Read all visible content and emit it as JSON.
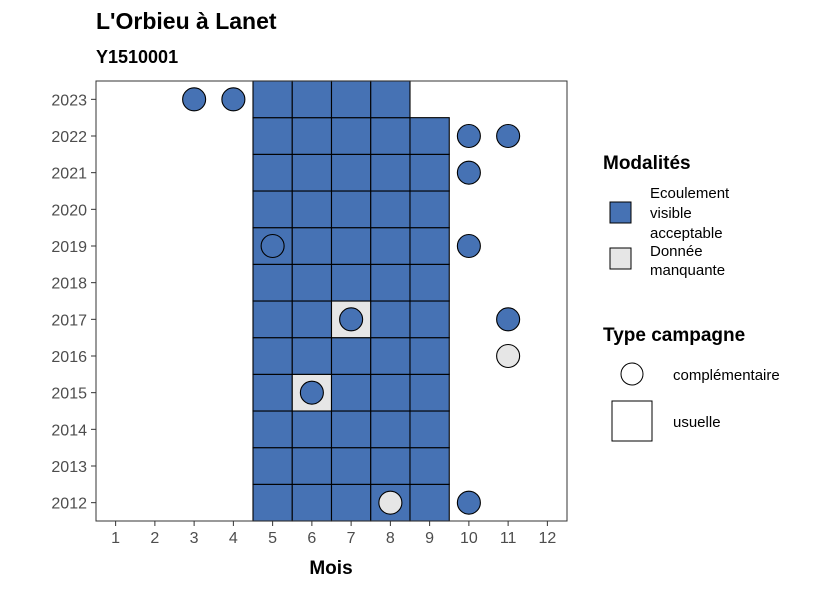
{
  "chart_data": {
    "type": "heatmap",
    "title": "L'Orbieu à Lanet",
    "subtitle": "Y1510001",
    "xlabel": "Mois",
    "ylabel": "",
    "x_ticks": [
      1,
      2,
      3,
      4,
      5,
      6,
      7,
      8,
      9,
      10,
      11,
      12
    ],
    "y_ticks": [
      2012,
      2013,
      2014,
      2015,
      2016,
      2017,
      2018,
      2019,
      2020,
      2021,
      2022,
      2023
    ],
    "xlim": [
      0.5,
      12.5
    ],
    "ylim": [
      2011.5,
      2023.5
    ],
    "colors": {
      "ecoulement": "#4672b4",
      "manquante": "#e6e6e6"
    },
    "tiles": [
      {
        "year": 2012,
        "month": 5,
        "modalite": "ecoulement"
      },
      {
        "year": 2012,
        "month": 6,
        "modalite": "ecoulement"
      },
      {
        "year": 2012,
        "month": 7,
        "modalite": "ecoulement"
      },
      {
        "year": 2012,
        "month": 8,
        "modalite": "ecoulement"
      },
      {
        "year": 2012,
        "month": 9,
        "modalite": "ecoulement"
      },
      {
        "year": 2013,
        "month": 5,
        "modalite": "ecoulement"
      },
      {
        "year": 2013,
        "month": 6,
        "modalite": "ecoulement"
      },
      {
        "year": 2013,
        "month": 7,
        "modalite": "ecoulement"
      },
      {
        "year": 2013,
        "month": 8,
        "modalite": "ecoulement"
      },
      {
        "year": 2013,
        "month": 9,
        "modalite": "ecoulement"
      },
      {
        "year": 2014,
        "month": 5,
        "modalite": "ecoulement"
      },
      {
        "year": 2014,
        "month": 6,
        "modalite": "ecoulement"
      },
      {
        "year": 2014,
        "month": 7,
        "modalite": "ecoulement"
      },
      {
        "year": 2014,
        "month": 8,
        "modalite": "ecoulement"
      },
      {
        "year": 2014,
        "month": 9,
        "modalite": "ecoulement"
      },
      {
        "year": 2015,
        "month": 5,
        "modalite": "ecoulement"
      },
      {
        "year": 2015,
        "month": 6,
        "modalite": "manquante"
      },
      {
        "year": 2015,
        "month": 7,
        "modalite": "ecoulement"
      },
      {
        "year": 2015,
        "month": 8,
        "modalite": "ecoulement"
      },
      {
        "year": 2015,
        "month": 9,
        "modalite": "ecoulement"
      },
      {
        "year": 2016,
        "month": 5,
        "modalite": "ecoulement"
      },
      {
        "year": 2016,
        "month": 6,
        "modalite": "ecoulement"
      },
      {
        "year": 2016,
        "month": 7,
        "modalite": "ecoulement"
      },
      {
        "year": 2016,
        "month": 8,
        "modalite": "ecoulement"
      },
      {
        "year": 2016,
        "month": 9,
        "modalite": "ecoulement"
      },
      {
        "year": 2017,
        "month": 5,
        "modalite": "ecoulement"
      },
      {
        "year": 2017,
        "month": 6,
        "modalite": "ecoulement"
      },
      {
        "year": 2017,
        "month": 7,
        "modalite": "manquante"
      },
      {
        "year": 2017,
        "month": 8,
        "modalite": "ecoulement"
      },
      {
        "year": 2017,
        "month": 9,
        "modalite": "ecoulement"
      },
      {
        "year": 2018,
        "month": 5,
        "modalite": "ecoulement"
      },
      {
        "year": 2018,
        "month": 6,
        "modalite": "ecoulement"
      },
      {
        "year": 2018,
        "month": 7,
        "modalite": "ecoulement"
      },
      {
        "year": 2018,
        "month": 8,
        "modalite": "ecoulement"
      },
      {
        "year": 2018,
        "month": 9,
        "modalite": "ecoulement"
      },
      {
        "year": 2019,
        "month": 5,
        "modalite": "ecoulement"
      },
      {
        "year": 2019,
        "month": 6,
        "modalite": "ecoulement"
      },
      {
        "year": 2019,
        "month": 7,
        "modalite": "ecoulement"
      },
      {
        "year": 2019,
        "month": 8,
        "modalite": "ecoulement"
      },
      {
        "year": 2019,
        "month": 9,
        "modalite": "ecoulement"
      },
      {
        "year": 2020,
        "month": 5,
        "modalite": "ecoulement"
      },
      {
        "year": 2020,
        "month": 6,
        "modalite": "ecoulement"
      },
      {
        "year": 2020,
        "month": 7,
        "modalite": "ecoulement"
      },
      {
        "year": 2020,
        "month": 8,
        "modalite": "ecoulement"
      },
      {
        "year": 2020,
        "month": 9,
        "modalite": "ecoulement"
      },
      {
        "year": 2021,
        "month": 5,
        "modalite": "ecoulement"
      },
      {
        "year": 2021,
        "month": 6,
        "modalite": "ecoulement"
      },
      {
        "year": 2021,
        "month": 7,
        "modalite": "ecoulement"
      },
      {
        "year": 2021,
        "month": 8,
        "modalite": "ecoulement"
      },
      {
        "year": 2021,
        "month": 9,
        "modalite": "ecoulement"
      },
      {
        "year": 2022,
        "month": 5,
        "modalite": "ecoulement"
      },
      {
        "year": 2022,
        "month": 6,
        "modalite": "ecoulement"
      },
      {
        "year": 2022,
        "month": 7,
        "modalite": "ecoulement"
      },
      {
        "year": 2022,
        "month": 8,
        "modalite": "ecoulement"
      },
      {
        "year": 2022,
        "month": 9,
        "modalite": "ecoulement"
      },
      {
        "year": 2023,
        "month": 5,
        "modalite": "ecoulement"
      },
      {
        "year": 2023,
        "month": 6,
        "modalite": "ecoulement"
      },
      {
        "year": 2023,
        "month": 7,
        "modalite": "ecoulement"
      },
      {
        "year": 2023,
        "month": 8,
        "modalite": "ecoulement"
      }
    ],
    "points": [
      {
        "year": 2023,
        "month": 3,
        "modalite": "ecoulement"
      },
      {
        "year": 2023,
        "month": 4,
        "modalite": "ecoulement"
      },
      {
        "year": 2022,
        "month": 10,
        "modalite": "ecoulement"
      },
      {
        "year": 2022,
        "month": 11,
        "modalite": "ecoulement"
      },
      {
        "year": 2021,
        "month": 10,
        "modalite": "ecoulement"
      },
      {
        "year": 2019,
        "month": 5,
        "modalite": "ecoulement"
      },
      {
        "year": 2019,
        "month": 10,
        "modalite": "ecoulement"
      },
      {
        "year": 2017,
        "month": 7,
        "modalite": "ecoulement"
      },
      {
        "year": 2017,
        "month": 11,
        "modalite": "ecoulement"
      },
      {
        "year": 2016,
        "month": 11,
        "modalite": "manquante"
      },
      {
        "year": 2015,
        "month": 6,
        "modalite": "ecoulement"
      },
      {
        "year": 2012,
        "month": 8,
        "modalite": "manquante"
      },
      {
        "year": 2012,
        "month": 10,
        "modalite": "ecoulement"
      }
    ],
    "legend": {
      "placement": "right",
      "modalites_title": "Modalités",
      "modalites": [
        {
          "key": "ecoulement",
          "lines": [
            "Ecoulement",
            "visible",
            "acceptable"
          ]
        },
        {
          "key": "manquante",
          "lines": [
            "Donnée",
            "manquante"
          ]
        }
      ],
      "type_title": "Type campagne",
      "types": [
        {
          "key": "complementaire",
          "shape": "circle",
          "label": "complémentaire"
        },
        {
          "key": "usuelle",
          "shape": "square",
          "label": "usuelle"
        }
      ]
    }
  }
}
